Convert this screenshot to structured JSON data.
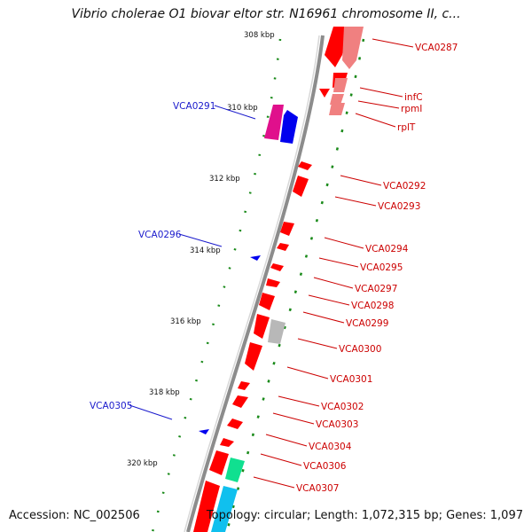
{
  "title": "Vibrio cholerae O1 biovar eltor str. N16961 chromosome II, c...",
  "footer": {
    "accession": "Accession: NC_002506",
    "stats": "Topology: circular; Length: 1,072,315 bp; Genes: 1,097"
  },
  "ticks": [
    "308 kbp",
    "310 kbp",
    "312 kbp",
    "314 kbp",
    "316 kbp",
    "318 kbp",
    "320 kbp"
  ],
  "gene_labels_right": [
    "VCA0287",
    "infC",
    "rpmI",
    "rplT",
    "VCA0292",
    "VCA0293",
    "VCA0294",
    "VCA0295",
    "VCA0297",
    "VCA0298",
    "VCA0299",
    "VCA0300",
    "VCA0301",
    "VCA0302",
    "VCA0303",
    "VCA0304",
    "VCA0306",
    "VCA0307"
  ],
  "gene_labels_left": [
    "VCA0291",
    "VCA0296",
    "VCA0305"
  ],
  "colors": {
    "forward_cds": "#ff0000",
    "rna_genes": "#f08080",
    "reverse_cds": "#0000ee",
    "pink_gene": "#e0108c",
    "grey_gene": "#b8b8b8",
    "green_gene": "#10e090",
    "cyan_gene": "#10c0ee",
    "backbone": "#8c8c8c",
    "gc_dots": "#1a8a1a",
    "label_red": "#cc0000",
    "label_blue": "#1a1acc"
  }
}
